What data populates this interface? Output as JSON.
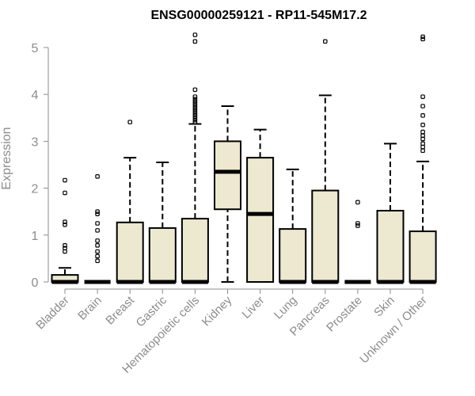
{
  "chart_data": {
    "type": "boxplot",
    "title": "ENSG00000259121 - RP11-545M17.2",
    "xlabel": "",
    "ylabel": "Expression",
    "ylim": [
      0,
      5.3
    ],
    "yticks": [
      0,
      1,
      2,
      3,
      4,
      5
    ],
    "box_color": "#ede8d0",
    "categories": [
      "Bladder",
      "Brain",
      "Breast",
      "Gastric",
      "Hematopoietic cells",
      "Kidney",
      "Liver",
      "Lung",
      "Pancreas",
      "Prostate",
      "Skin",
      "Unknown / Other"
    ],
    "boxes": [
      {
        "min": 0,
        "q1": 0,
        "median": 0,
        "q3": 0.15,
        "max": 0.3,
        "outliers": [
          0.65,
          0.72,
          0.78,
          1.22,
          1.28,
          1.9,
          2.17
        ]
      },
      {
        "min": 0,
        "q1": 0,
        "median": 0,
        "q3": 0,
        "max": 0,
        "outliers": [
          0.45,
          0.55,
          0.65,
          0.78,
          0.88,
          1.1,
          1.25,
          1.45,
          1.5,
          2.25
        ]
      },
      {
        "min": 0,
        "q1": 0,
        "median": 0,
        "q3": 1.27,
        "max": 2.65,
        "outliers": [
          3.41
        ]
      },
      {
        "min": 0,
        "q1": 0,
        "median": 0,
        "q3": 1.15,
        "max": 2.55,
        "outliers": []
      },
      {
        "min": 0,
        "q1": 0,
        "median": 0,
        "q3": 1.35,
        "max": 3.37,
        "outliers": [
          3.4,
          3.45,
          3.5,
          3.55,
          3.6,
          3.65,
          3.7,
          3.75,
          3.8,
          3.85,
          3.9,
          3.95,
          4.1,
          5.13,
          5.27
        ]
      },
      {
        "min": 0,
        "q1": 1.55,
        "median": 2.35,
        "q3": 3.0,
        "max": 3.75,
        "outliers": []
      },
      {
        "min": 0,
        "q1": 0,
        "median": 1.45,
        "q3": 2.65,
        "max": 3.25,
        "outliers": []
      },
      {
        "min": 0,
        "q1": 0,
        "median": 0,
        "q3": 1.13,
        "max": 2.4,
        "outliers": []
      },
      {
        "min": 0,
        "q1": 0,
        "median": 0,
        "q3": 1.95,
        "max": 3.98,
        "outliers": [
          5.13
        ]
      },
      {
        "min": 0,
        "q1": 0,
        "median": 0,
        "q3": 0,
        "max": 0,
        "outliers": [
          1.2,
          1.25,
          1.7
        ]
      },
      {
        "min": 0,
        "q1": 0,
        "median": 0,
        "q3": 1.52,
        "max": 2.95,
        "outliers": []
      },
      {
        "min": 0,
        "q1": 0,
        "median": 0,
        "q3": 1.08,
        "max": 2.57,
        "outliers": [
          2.8,
          2.88,
          2.95,
          3.05,
          3.12,
          3.2,
          3.35,
          3.55,
          3.75,
          3.95,
          5.18,
          5.23
        ]
      }
    ]
  }
}
